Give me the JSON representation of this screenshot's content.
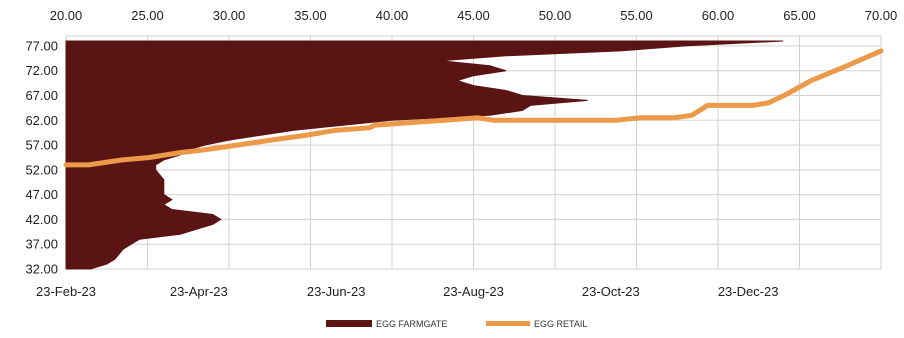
{
  "chart_data": {
    "type": "line",
    "title": "",
    "xlabel": "",
    "ylabel": "",
    "top_axis": {
      "ticks": [
        "20.00",
        "25.00",
        "30.00",
        "35.00",
        "40.00",
        "45.00",
        "50.00",
        "55.00",
        "60.00",
        "65.00",
        "70.00"
      ],
      "range": [
        20,
        70
      ]
    },
    "left_axis": {
      "ticks": [
        "77.00",
        "72.00",
        "67.00",
        "62.00",
        "57.00",
        "52.00",
        "47.00",
        "42.00",
        "37.00",
        "32.00"
      ],
      "range": [
        32,
        79
      ]
    },
    "bottom_axis": {
      "ticks": [
        "23-Feb-23",
        "23-Apr-23",
        "23-Jun-23",
        "23-Aug-23",
        "23-Oct-23",
        "23-Dec-23"
      ],
      "range": [
        "2023-02-23",
        "2024-02-20"
      ]
    },
    "grid": true,
    "legend_position": "bottom",
    "series": [
      {
        "name": "EGG FARMGATE",
        "color": "#5a1414",
        "style": "area",
        "axes": "top-x / left-y",
        "points": [
          [
            21.5,
            32
          ],
          [
            22.5,
            33
          ],
          [
            23.0,
            34
          ],
          [
            23.5,
            36
          ],
          [
            24.0,
            37
          ],
          [
            24.5,
            38
          ],
          [
            27.0,
            39
          ],
          [
            28.0,
            40
          ],
          [
            29.0,
            41
          ],
          [
            29.5,
            42
          ],
          [
            29.0,
            43
          ],
          [
            26.5,
            44
          ],
          [
            26.0,
            45
          ],
          [
            26.5,
            46
          ],
          [
            26.0,
            47
          ],
          [
            26.0,
            48
          ],
          [
            26.0,
            50
          ],
          [
            25.5,
            52
          ],
          [
            25.5,
            53
          ],
          [
            26.0,
            54
          ],
          [
            27.0,
            55
          ],
          [
            27.5,
            56
          ],
          [
            28.5,
            57
          ],
          [
            30.0,
            58
          ],
          [
            32.0,
            59
          ],
          [
            34.0,
            60
          ],
          [
            37.0,
            61
          ],
          [
            40.0,
            62
          ],
          [
            46.0,
            63
          ],
          [
            48.0,
            64
          ],
          [
            48.5,
            65
          ],
          [
            52.0,
            66
          ],
          [
            48.0,
            67
          ],
          [
            47.0,
            68
          ],
          [
            45.0,
            69
          ],
          [
            44.0,
            70
          ],
          [
            45.0,
            71
          ],
          [
            47.0,
            72
          ],
          [
            46.0,
            73
          ],
          [
            43.0,
            74
          ],
          [
            47.0,
            75
          ],
          [
            54.0,
            76
          ],
          [
            58.0,
            77
          ],
          [
            64.0,
            78
          ]
        ]
      },
      {
        "name": "EGG RETAIL",
        "color": "#ec9a4a",
        "style": "line",
        "axes": "bottom-date / left-y",
        "points": [
          [
            "2023-02-23",
            53.0
          ],
          [
            "2023-03-05",
            53.0
          ],
          [
            "2023-03-20",
            54.0
          ],
          [
            "2023-04-01",
            54.5
          ],
          [
            "2023-04-15",
            55.5
          ],
          [
            "2023-04-25",
            56.0
          ],
          [
            "2023-05-10",
            57.0
          ],
          [
            "2023-05-25",
            58.0
          ],
          [
            "2023-06-10",
            59.0
          ],
          [
            "2023-06-23",
            60.0
          ],
          [
            "2023-07-08",
            60.5
          ],
          [
            "2023-07-10",
            61.0
          ],
          [
            "2023-07-25",
            61.5
          ],
          [
            "2023-08-10",
            62.0
          ],
          [
            "2023-08-25",
            62.5
          ],
          [
            "2023-09-01",
            62.0
          ],
          [
            "2023-09-20",
            62.0
          ],
          [
            "2023-10-10",
            62.0
          ],
          [
            "2023-10-25",
            62.0
          ],
          [
            "2023-11-05",
            62.5
          ],
          [
            "2023-11-20",
            62.5
          ],
          [
            "2023-11-28",
            63.0
          ],
          [
            "2023-12-05",
            65.0
          ],
          [
            "2023-12-25",
            65.0
          ],
          [
            "2024-01-01",
            65.5
          ],
          [
            "2024-01-08",
            67.0
          ],
          [
            "2024-01-20",
            70.0
          ],
          [
            "2024-02-05",
            73.0
          ],
          [
            "2024-02-20",
            76.0
          ]
        ]
      }
    ]
  }
}
